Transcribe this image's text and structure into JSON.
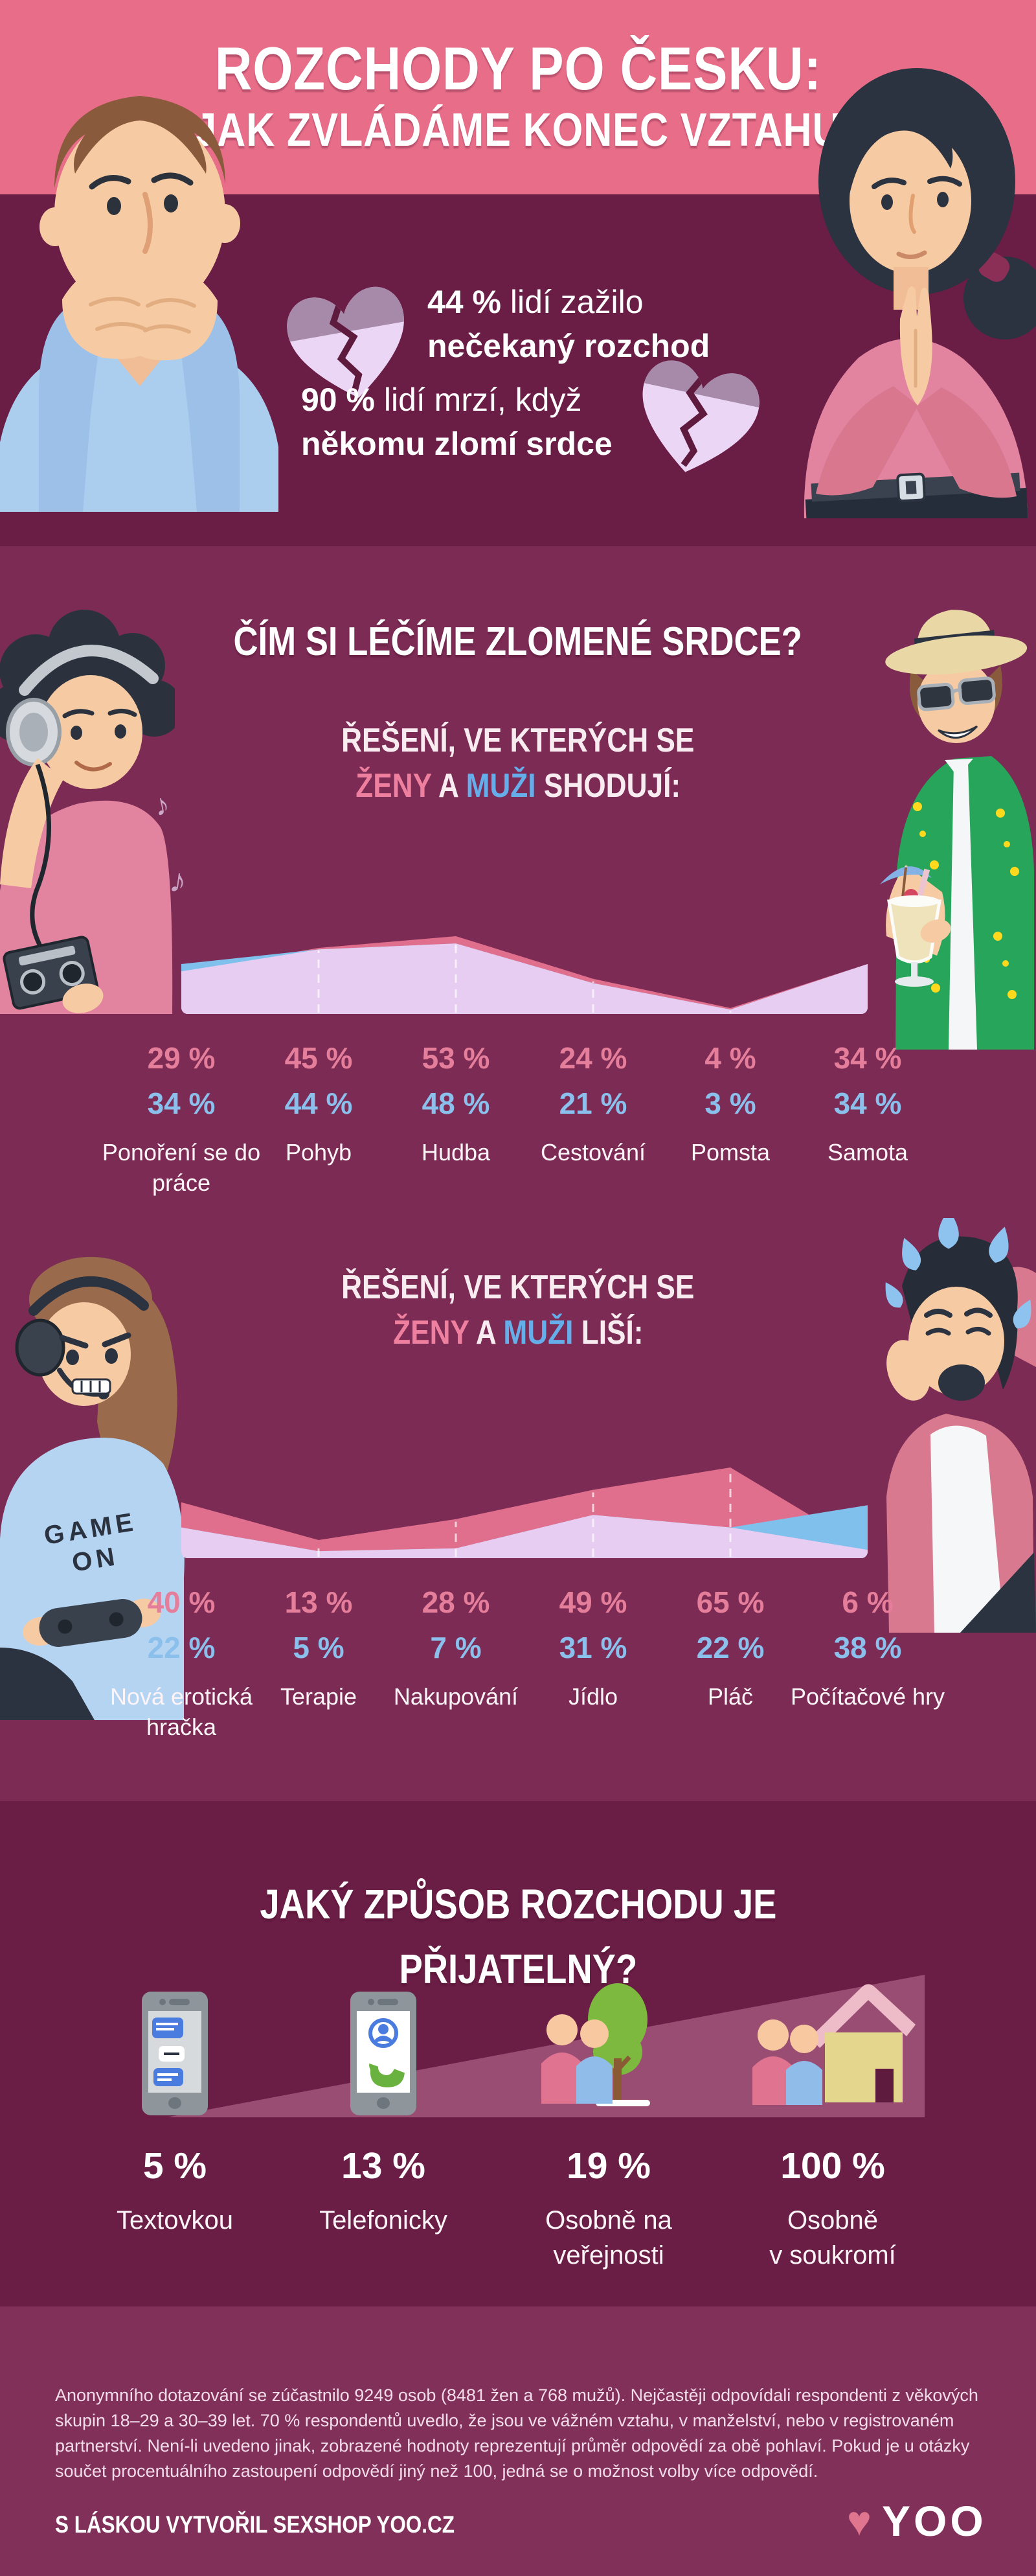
{
  "header": {
    "title_line1": "ROZCHODY PO ČESKU:",
    "title_line2": "JAK ZVLÁDÁME KONEC VZTAHU"
  },
  "stats": {
    "stat1": {
      "value": "44 %",
      "text": " lidí zažilo",
      "bold_line": "nečekaný rozchod"
    },
    "stat2": {
      "value": "90 %",
      "text": " lidí mrzí, když",
      "bold_line": "někomu zlomí srdce"
    }
  },
  "remedies": {
    "heading": "ČÍM SI LÉČÍME ZLOMENÉ SRDCE?",
    "agree": {
      "line1": "ŘEŠENÍ, VE KTERÝCH SE",
      "zeny": "ŽENY",
      "a": " A ",
      "muzi": "MUŽI",
      "tail": " SHODUJÍ:"
    },
    "differ": {
      "line1": "ŘEŠENÍ, VE KTERÝCH SE",
      "zeny": "ŽENY",
      "a": " A ",
      "muzi": "MUŽI",
      "tail": " LIŠÍ:"
    }
  },
  "breakup": {
    "heading_line1": "JAKÝ ZPŮSOB ROZCHODU JE",
    "heading_line2": "PŘIJATELNÝ?"
  },
  "chart_data": [
    {
      "type": "area",
      "title": "Řešení, ve kterých se ženy a muži shodují",
      "categories": [
        "Ponoření se do práce",
        "Pohyb",
        "Hudba",
        "Cestování",
        "Pomsta",
        "Samota"
      ],
      "series": [
        {
          "name": "ženy",
          "color": "#e06f8e",
          "values": [
            29,
            45,
            53,
            24,
            4,
            34
          ]
        },
        {
          "name": "muži",
          "color": "#7fc0ec",
          "values": [
            34,
            44,
            48,
            21,
            3,
            34
          ]
        }
      ],
      "overlap_color": "#e6cdf1",
      "unit": "%",
      "ylim": [
        0,
        55
      ],
      "grid": "dashed-vertical-at-inner-points",
      "legend": "none"
    },
    {
      "type": "area",
      "title": "Řešení, ve kterých se ženy a muži liší",
      "categories": [
        "Nová erotická hračka",
        "Terapie",
        "Nakupování",
        "Jídlo",
        "Pláč",
        "Počítačové hry"
      ],
      "series": [
        {
          "name": "ženy",
          "color": "#e06f8e",
          "values": [
            40,
            13,
            28,
            49,
            65,
            6
          ]
        },
        {
          "name": "muži",
          "color": "#7fc0ec",
          "values": [
            22,
            5,
            7,
            31,
            22,
            38
          ]
        }
      ],
      "overlap_color": "#e6cdf1",
      "unit": "%",
      "ylim": [
        0,
        70
      ],
      "grid": "dashed-vertical-at-inner-points",
      "legend": "none"
    },
    {
      "type": "pictogram",
      "title": "Jaký způsob rozchodu je přijatelný?",
      "categories": [
        "Textovkou",
        "Telefonicky",
        "Osobně na veřejnosti",
        "Osobně v soukromí"
      ],
      "values": [
        5,
        13,
        19,
        100
      ],
      "values_display": [
        "5 %",
        "13 %",
        "19 %",
        "100 %"
      ],
      "unit": "%",
      "icon_names": [
        "phone-sms-icon",
        "phone-call-icon",
        "people-tree-icon",
        "people-house-icon"
      ]
    }
  ],
  "illustrations": {
    "gamer_shirt_line1": "GAME",
    "gamer_shirt_line2": "ON"
  },
  "icons": {
    "heart": "♥",
    "note_single": "♪",
    "note_double": "♫"
  },
  "footer": {
    "paragraph": "Anonymního dotazování se zúčastnilo 9249 osob (8481 žen a 768 mužů). Nejčastěji odpovídali respondenti z věkových skupin 18–29 a 30–39 let. 70 % respondentů uvedlo, že jsou ve vážném vztahu, v manželství, nebo v registrovaném partnerství. Není-li uvedeno jinak, zobrazené hodnoty reprezentují průměr odpovědí za obě pohlaví. Pokud je u otázky součet procentuálního zastoupení odpovědí jiný než 100, jedná se o možnost volby více odpovědí.",
    "credit": "S LÁSKOU VYTVOŘIL SEXSHOP YOO.CZ",
    "logo_text": "YOO"
  },
  "colors": {
    "band_pink": "#e76d88",
    "dark_maroon": "#6a1d45",
    "mid_maroon": "#7c2b54",
    "footer_maroon": "#813059",
    "women_pink": "#e06f8e",
    "men_blue": "#7fc0ec",
    "overlap_lavender": "#e6cdf1",
    "beam": "#9a4d73"
  }
}
